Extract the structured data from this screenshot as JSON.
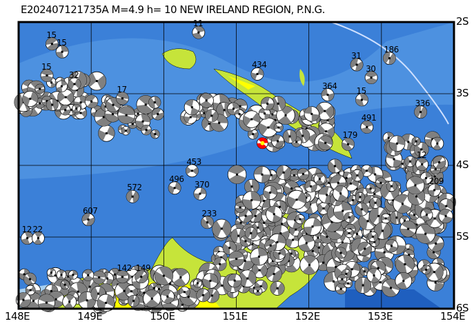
{
  "title": "E202407121735A M=4.9 h= 10 NEW IRELAND REGION, P.N.G.",
  "map": {
    "lon_range": [
      148,
      154
    ],
    "lat_range": [
      -6,
      -2
    ],
    "lon_labels": [
      "148E",
      "149E",
      "150E",
      "151E",
      "152E",
      "153E",
      "154E"
    ],
    "lat_labels": [
      "2S",
      "3S",
      "4S",
      "5S",
      "6S"
    ],
    "colors": {
      "ocean": "#3b80d8",
      "ocean_light": "#5a9ce6",
      "ocean_deep": "#1f5fbf",
      "land": "#c6e43a",
      "land_high": "#ffff00",
      "mechanism_fill": "#808080",
      "main_event": "#ff0000",
      "main_event_alt": "#ffff00"
    },
    "main_event": {
      "lon": 151.36,
      "lat": -3.69
    },
    "events": [
      {
        "lon": 150.48,
        "lat": -2.03,
        "depth": "11"
      },
      {
        "lon": 148.46,
        "lat": -2.19,
        "depth": "15"
      },
      {
        "lon": 148.6,
        "lat": -2.3,
        "depth": "15"
      },
      {
        "lon": 148.39,
        "lat": -2.63,
        "depth": "15"
      },
      {
        "lon": 148.77,
        "lat": -2.75,
        "depth": "32"
      },
      {
        "lon": 149.43,
        "lat": -2.95,
        "depth": "17"
      },
      {
        "lon": 151.29,
        "lat": -2.61,
        "depth": "434"
      },
      {
        "lon": 152.66,
        "lat": -2.48,
        "depth": "31"
      },
      {
        "lon": 152.86,
        "lat": -2.66,
        "depth": "30"
      },
      {
        "lon": 153.11,
        "lat": -2.39,
        "depth": "186"
      },
      {
        "lon": 152.26,
        "lat": -2.9,
        "depth": "364"
      },
      {
        "lon": 152.73,
        "lat": -2.97,
        "depth": "15"
      },
      {
        "lon": 153.54,
        "lat": -3.14,
        "depth": "336"
      },
      {
        "lon": 152.8,
        "lat": -3.35,
        "depth": "491"
      },
      {
        "lon": 152.54,
        "lat": -3.59,
        "depth": "179"
      },
      {
        "lon": 153.56,
        "lat": -3.87,
        "depth": "12"
      },
      {
        "lon": 150.39,
        "lat": -3.96,
        "depth": "453"
      },
      {
        "lon": 150.15,
        "lat": -4.2,
        "depth": "496"
      },
      {
        "lon": 150.5,
        "lat": -4.28,
        "depth": "370"
      },
      {
        "lon": 149.57,
        "lat": -4.32,
        "depth": "572"
      },
      {
        "lon": 148.96,
        "lat": -4.64,
        "depth": "607"
      },
      {
        "lon": 150.6,
        "lat": -4.68,
        "depth": "233"
      },
      {
        "lon": 148.12,
        "lat": -4.9,
        "depth": "12"
      },
      {
        "lon": 148.27,
        "lat": -4.9,
        "depth": "22"
      },
      {
        "lon": 149.43,
        "lat": -5.44,
        "depth": "142"
      },
      {
        "lon": 149.69,
        "lat": -5.44,
        "depth": "149"
      },
      {
        "lon": 153.73,
        "lat": -4.23,
        "depth": "209"
      }
    ]
  }
}
